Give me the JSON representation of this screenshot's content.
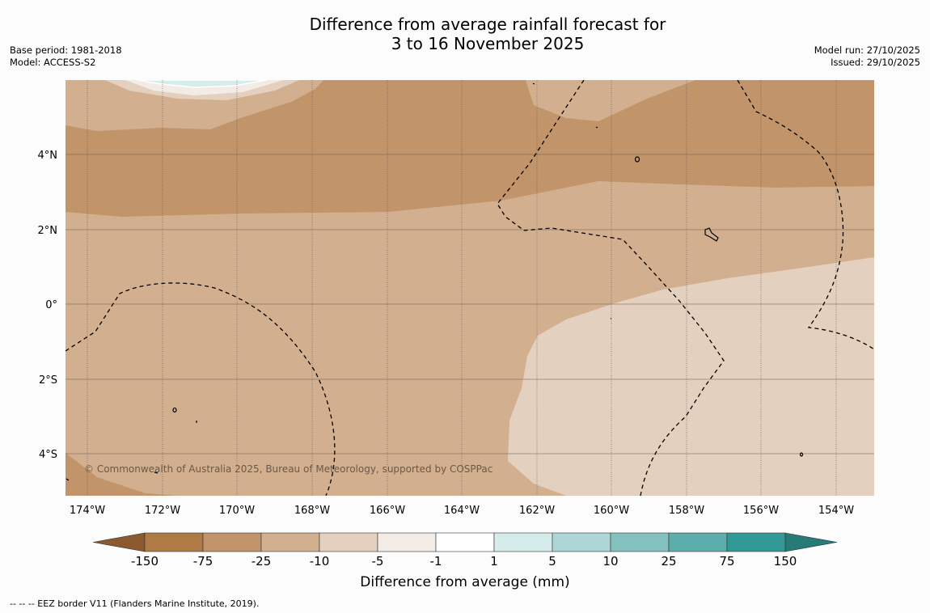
{
  "title": {
    "line1": "Difference from average rainfall forecast for",
    "line2": "3 to 16 November 2025"
  },
  "meta_left": {
    "base_period": "Base period: 1981-2018",
    "model": "Model: ACCESS-S2"
  },
  "meta_right": {
    "model_run": "Model run: 27/10/2025",
    "issued": "Issued: 29/10/2025"
  },
  "map": {
    "x_ticks": [
      "174°W",
      "172°W",
      "170°W",
      "168°W",
      "166°W",
      "164°W",
      "162°W",
      "160°W",
      "158°W",
      "156°W",
      "154°W"
    ],
    "y_ticks": [
      "4°N",
      "2°N",
      "0°",
      "2°S",
      "4°S"
    ],
    "copyright": "© Commonwealth of Australia 2025, Bureau of Meteorology, supported by COSPPac"
  },
  "colorbar": {
    "colors": {
      "extend_low": "#8a5a2e",
      "c1": "#b07a45",
      "c2": "#c1946a",
      "c3": "#d2b08f",
      "c4": "#e4d0bf",
      "c5": "#f3ece6",
      "c6": "#ffffff",
      "c7": "#d5eceb",
      "c8": "#acd6d5",
      "c9": "#83c1bf",
      "c10": "#5baeab",
      "c11": "#329a96",
      "extend_high": "#267b78"
    },
    "ticks": [
      "-150",
      "-75",
      "-25",
      "-10",
      "-5",
      "-1",
      "1",
      "5",
      "10",
      "25",
      "75",
      "150"
    ],
    "label": "Difference from average (mm)"
  },
  "footer": "--  --  -- EEZ border V11 (Flanders Marine Institute, 2019)."
}
